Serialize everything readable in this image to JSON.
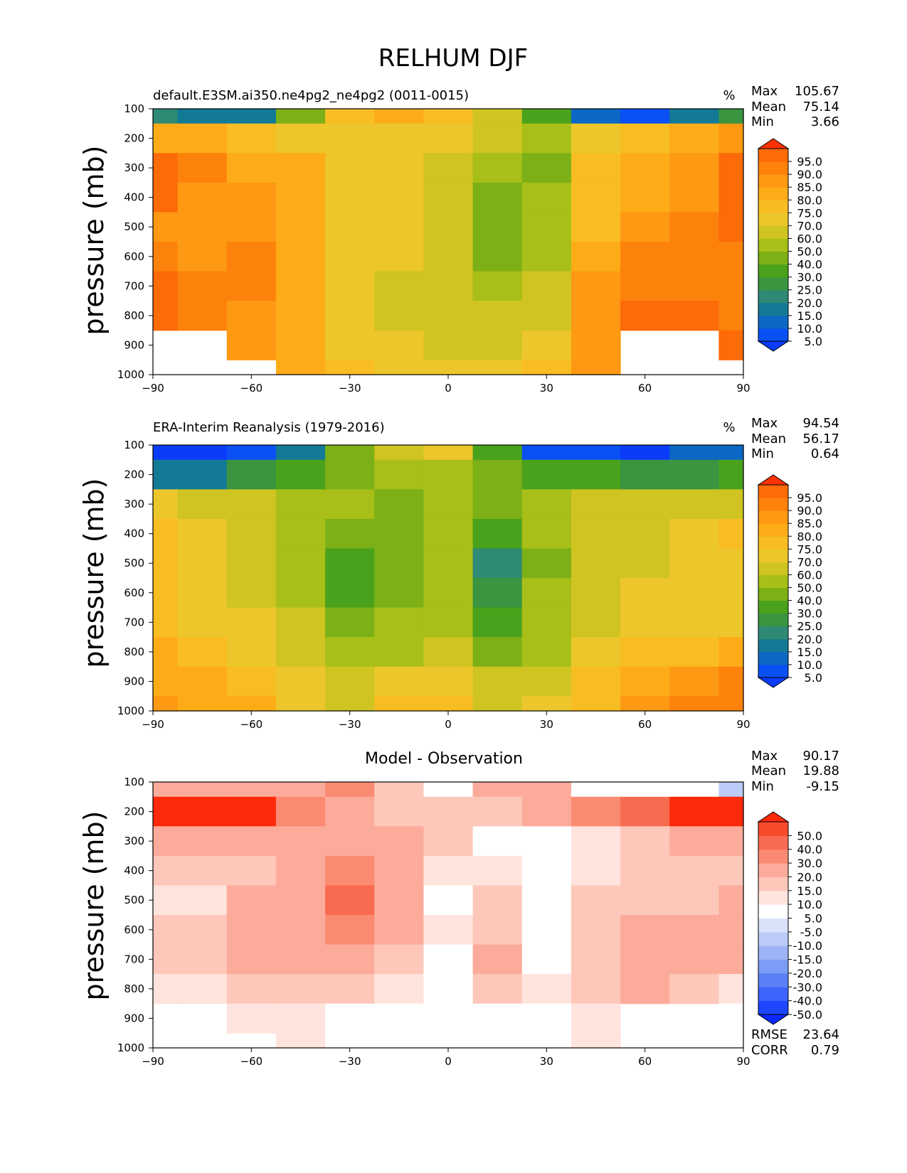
{
  "figure": {
    "title": "RELHUM DJF"
  },
  "colors": {
    "abs_levels": [
      {
        "label": "5.0",
        "color": "#0a50f5"
      },
      {
        "label": "10.0",
        "color": "#0b68c4"
      },
      {
        "label": "15.0",
        "color": "#137a96"
      },
      {
        "label": "20.0",
        "color": "#2e8a74"
      },
      {
        "label": "25.0",
        "color": "#3a9440"
      },
      {
        "label": "30.0",
        "color": "#4aa21c"
      },
      {
        "label": "40.0",
        "color": "#7cb016"
      },
      {
        "label": "50.0",
        "color": "#a7bf18"
      },
      {
        "label": "60.0",
        "color": "#cfc421"
      },
      {
        "label": "70.0",
        "color": "#ecc62a"
      },
      {
        "label": "75.0",
        "color": "#f8bd22"
      },
      {
        "label": "80.0",
        "color": "#fdac18"
      },
      {
        "label": "85.0",
        "color": "#fd9912"
      },
      {
        "label": "90.0",
        "color": "#fd820c"
      },
      {
        "label": "95.0",
        "color": "#fd6a08"
      }
    ],
    "abs_low_extend": "#0a3cfa",
    "abs_high_extend": "#ff3205",
    "diff_levels": [
      {
        "label": "-50.0",
        "color": "#1e46ff"
      },
      {
        "label": "-40.0",
        "color": "#3d64fb"
      },
      {
        "label": "-30.0",
        "color": "#5b80f6"
      },
      {
        "label": "-20.0",
        "color": "#7c9cf5"
      },
      {
        "label": "-15.0",
        "color": "#9db4f6"
      },
      {
        "label": "-10.0",
        "color": "#bccbf7"
      },
      {
        "label": "-5.0",
        "color": "#dae2fa"
      },
      {
        "label": "5.0",
        "color": "#ffffff"
      },
      {
        "label": "10.0",
        "color": "#ffe4dd"
      },
      {
        "label": "15.0",
        "color": "#fdc7b9"
      },
      {
        "label": "20.0",
        "color": "#fcab9a"
      },
      {
        "label": "30.0",
        "color": "#fa8b72"
      },
      {
        "label": "40.0",
        "color": "#f96b50"
      },
      {
        "label": "50.0",
        "color": "#f94a2c"
      }
    ],
    "diff_low_extend": "#0a28ff",
    "diff_high_extend": "#ff2a0a"
  },
  "chart_data": [
    {
      "type": "heatmap",
      "subtitle_left": "default.E3SM.ai350.ne4pg2_ne4pg2 (0011-0015)",
      "subtitle_center": "",
      "units": "%",
      "ylabel": "pressure (mb)",
      "xlim": [
        -90,
        90
      ],
      "ylim": [
        1000,
        100
      ],
      "x_ticks": [
        "−90",
        "−60",
        "−30",
        "0",
        "30",
        "60",
        "90"
      ],
      "y_ticks": [
        "100",
        "200",
        "300",
        "400",
        "500",
        "600",
        "700",
        "800",
        "900",
        "1000"
      ],
      "stats": {
        "max_label": "Max",
        "max": "105.67",
        "mean_label": "Mean",
        "mean": "75.14",
        "min_label": "Min",
        "min": "3.66"
      },
      "colorbar_levels": [
        "5.0",
        "10.0",
        "15.0",
        "20.0",
        "25.0",
        "30.0",
        "40.0",
        "50.0",
        "60.0",
        "70.0",
        "75.0",
        "80.0",
        "85.0",
        "90.0",
        "95.0"
      ],
      "lat": [
        -90,
        -75,
        -60,
        -45,
        -30,
        -15,
        0,
        15,
        30,
        45,
        60,
        75,
        90
      ],
      "lev": [
        100,
        200,
        300,
        400,
        500,
        600,
        700,
        800,
        900,
        1000
      ],
      "values": [
        [
          20,
          15,
          18,
          40,
          75,
          80,
          75,
          60,
          30,
          10,
          8,
          15,
          25
        ],
        [
          82,
          82,
          78,
          73,
          70,
          72,
          70,
          60,
          55,
          70,
          78,
          80,
          85
        ],
        [
          96,
          92,
          84,
          80,
          74,
          72,
          68,
          50,
          40,
          75,
          82,
          88,
          96
        ],
        [
          95,
          88,
          86,
          82,
          74,
          70,
          62,
          42,
          50,
          78,
          84,
          88,
          96
        ],
        [
          88,
          86,
          88,
          80,
          72,
          70,
          60,
          40,
          55,
          78,
          86,
          90,
          96
        ],
        [
          92,
          88,
          94,
          84,
          72,
          70,
          62,
          42,
          58,
          80,
          90,
          92,
          94
        ],
        [
          96,
          90,
          90,
          82,
          70,
          68,
          62,
          52,
          60,
          85,
          94,
          94,
          94
        ],
        [
          96,
          92,
          88,
          80,
          72,
          68,
          66,
          62,
          66,
          86,
          98,
          96,
          94
        ],
        [
          -1,
          -1,
          88,
          82,
          74,
          70,
          68,
          68,
          72,
          86,
          -1,
          -1,
          96
        ],
        [
          -1,
          -1,
          -1,
          84,
          76,
          74,
          72,
          74,
          78,
          88,
          -1,
          -1,
          -1
        ]
      ]
    },
    {
      "type": "heatmap",
      "subtitle_left": "ERA-Interim Reanalysis (1979-2016)",
      "subtitle_center": "",
      "units": "%",
      "ylabel": "pressure (mb)",
      "xlim": [
        -90,
        90
      ],
      "ylim": [
        1000,
        100
      ],
      "x_ticks": [
        "−90",
        "−60",
        "−30",
        "0",
        "30",
        "60",
        "90"
      ],
      "y_ticks": [
        "100",
        "200",
        "300",
        "400",
        "500",
        "600",
        "700",
        "800",
        "900",
        "1000"
      ],
      "stats": {
        "max_label": "Max",
        "max": "94.54",
        "mean_label": "Mean",
        "mean": "56.17",
        "min_label": "Min",
        "min": "0.64"
      },
      "colorbar_levels": [
        "5.0",
        "10.0",
        "15.0",
        "20.0",
        "25.0",
        "30.0",
        "40.0",
        "50.0",
        "60.0",
        "70.0",
        "75.0",
        "80.0",
        "85.0",
        "90.0",
        "95.0"
      ],
      "lat": [
        -90,
        -75,
        -60,
        -45,
        -30,
        -15,
        0,
        15,
        30,
        45,
        60,
        75,
        90
      ],
      "lev": [
        100,
        200,
        300,
        400,
        500,
        600,
        700,
        800,
        900,
        1000
      ],
      "values": [
        [
          2,
          3,
          5,
          15,
          40,
          65,
          72,
          35,
          8,
          5,
          3,
          10,
          12
        ],
        [
          15,
          18,
          25,
          35,
          45,
          55,
          50,
          40,
          35,
          30,
          25,
          25,
          30
        ],
        [
          72,
          65,
          60,
          55,
          50,
          45,
          50,
          45,
          55,
          60,
          62,
          65,
          68
        ],
        [
          78,
          72,
          68,
          58,
          40,
          48,
          52,
          30,
          55,
          62,
          68,
          72,
          78
        ],
        [
          75,
          72,
          68,
          55,
          32,
          45,
          52,
          22,
          48,
          62,
          68,
          72,
          74
        ],
        [
          75,
          70,
          65,
          55,
          35,
          45,
          52,
          25,
          50,
          65,
          70,
          72,
          72
        ],
        [
          78,
          72,
          70,
          60,
          42,
          50,
          55,
          32,
          52,
          66,
          70,
          72,
          72
        ],
        [
          82,
          78,
          72,
          64,
          55,
          58,
          60,
          45,
          56,
          70,
          75,
          78,
          80
        ],
        [
          84,
          80,
          76,
          70,
          65,
          72,
          70,
          62,
          65,
          75,
          82,
          86,
          90
        ],
        [
          88,
          82,
          80,
          72,
          68,
          78,
          76,
          68,
          70,
          78,
          86,
          90,
          94
        ]
      ]
    },
    {
      "type": "heatmap",
      "subtitle_left": "",
      "subtitle_center": "Model - Observation",
      "units": "",
      "ylabel": "pressure (mb)",
      "xlim": [
        -90,
        90
      ],
      "ylim": [
        1000,
        100
      ],
      "x_ticks": [
        "−90",
        "−60",
        "−30",
        "0",
        "30",
        "60",
        "90"
      ],
      "y_ticks": [
        "100",
        "200",
        "300",
        "400",
        "500",
        "600",
        "700",
        "800",
        "900",
        "1000"
      ],
      "stats": {
        "max_label": "Max",
        "max": "90.17",
        "mean_label": "Mean",
        "mean": "19.88",
        "min_label": "Min",
        "min": "-9.15"
      },
      "extra_stats": {
        "rmse_label": "RMSE",
        "rmse": "23.64",
        "corr_label": "CORR",
        "corr": "0.79"
      },
      "colorbar_levels": [
        "-50.0",
        "-40.0",
        "-30.0",
        "-20.0",
        "-15.0",
        "-10.0",
        "-5.0",
        "5.0",
        "10.0",
        "15.0",
        "20.0",
        "30.0",
        "40.0",
        "50.0"
      ],
      "lat": [
        -90,
        -75,
        -60,
        -45,
        -30,
        -15,
        0,
        15,
        30,
        45,
        60,
        75,
        90
      ],
      "lev": [
        100,
        200,
        300,
        400,
        500,
        600,
        700,
        800,
        900,
        1000
      ],
      "values": [
        [
          28,
          25,
          24,
          22,
          30,
          15,
          5,
          25,
          22,
          8,
          5,
          2,
          -6
        ],
        [
          62,
          60,
          52,
          38,
          24,
          18,
          16,
          18,
          22,
          38,
          45,
          52,
          55
        ],
        [
          22,
          24,
          24,
          25,
          24,
          27,
          18,
          -4,
          0,
          14,
          18,
          22,
          28
        ],
        [
          17,
          15,
          18,
          24,
          34,
          22,
          12,
          12,
          4,
          14,
          16,
          16,
          18
        ],
        [
          13,
          14,
          20,
          25,
          40,
          25,
          8,
          18,
          7,
          16,
          18,
          18,
          22
        ],
        [
          17,
          18,
          29,
          29,
          37,
          25,
          10,
          17,
          8,
          15,
          20,
          20,
          22
        ],
        [
          18,
          18,
          20,
          22,
          28,
          18,
          7,
          20,
          8,
          19,
          24,
          22,
          22
        ],
        [
          14,
          14,
          16,
          16,
          17,
          10,
          6,
          17,
          10,
          16,
          23,
          18,
          14
        ],
        [
          -1,
          -1,
          12,
          12,
          9,
          -2,
          -2,
          7,
          7,
          11,
          -1,
          -1,
          6
        ],
        [
          -1,
          -1,
          -1,
          12,
          8,
          -4,
          -4,
          6,
          8,
          10,
          -1,
          -1,
          -1
        ]
      ]
    }
  ]
}
